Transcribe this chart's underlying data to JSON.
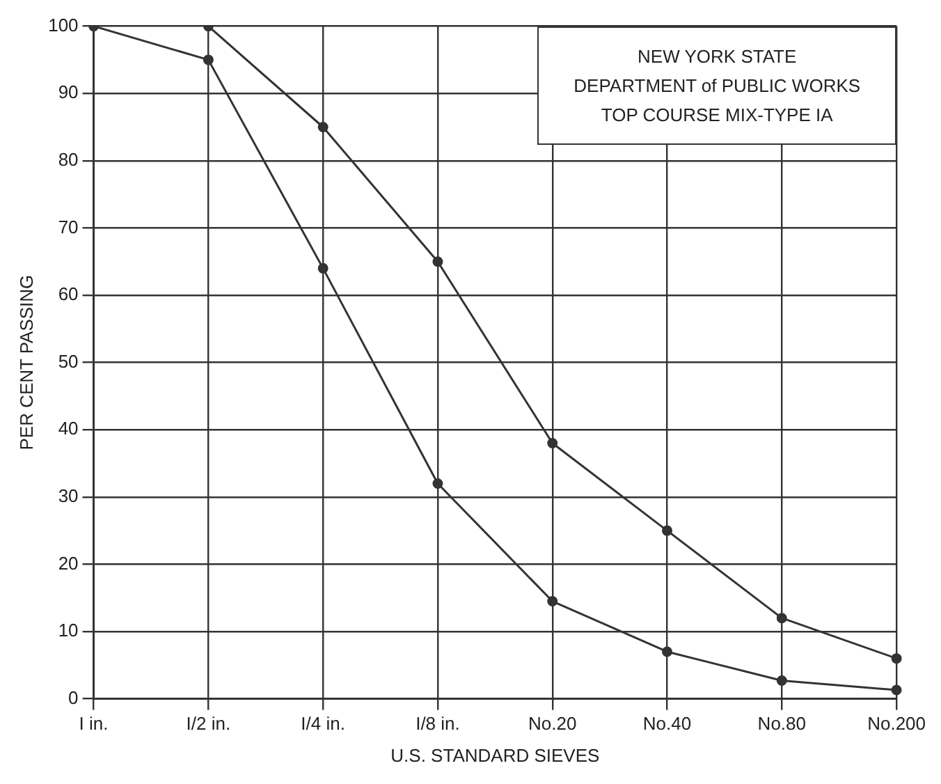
{
  "chart_data": {
    "type": "line",
    "title": "NEW YORK STATE\nDEPARTMENT of PUBLIC WORKS\nTOP COURSE MIX-TYPE IA",
    "xlabel": "U.S. STANDARD SIEVES",
    "ylabel": "PER CENT PASSING",
    "categories": [
      "I in.",
      "I/2 in.",
      "I/4 in.",
      "I/8 in.",
      "No.20",
      "No.40",
      "No.80",
      "No.200"
    ],
    "series": [
      {
        "color": "#333333",
        "values": [
          null,
          100,
          85,
          65,
          38,
          25,
          12,
          6
        ]
      },
      {
        "color": "#333333",
        "values": [
          100,
          95,
          64,
          32,
          14.5,
          7,
          2.7,
          1.3
        ]
      }
    ],
    "ylim": [
      0,
      100
    ],
    "yticks": [
      0,
      10,
      20,
      30,
      40,
      50,
      60,
      70,
      80,
      90,
      100
    ],
    "grid": true,
    "marker": "circle",
    "line_style": "solid"
  }
}
